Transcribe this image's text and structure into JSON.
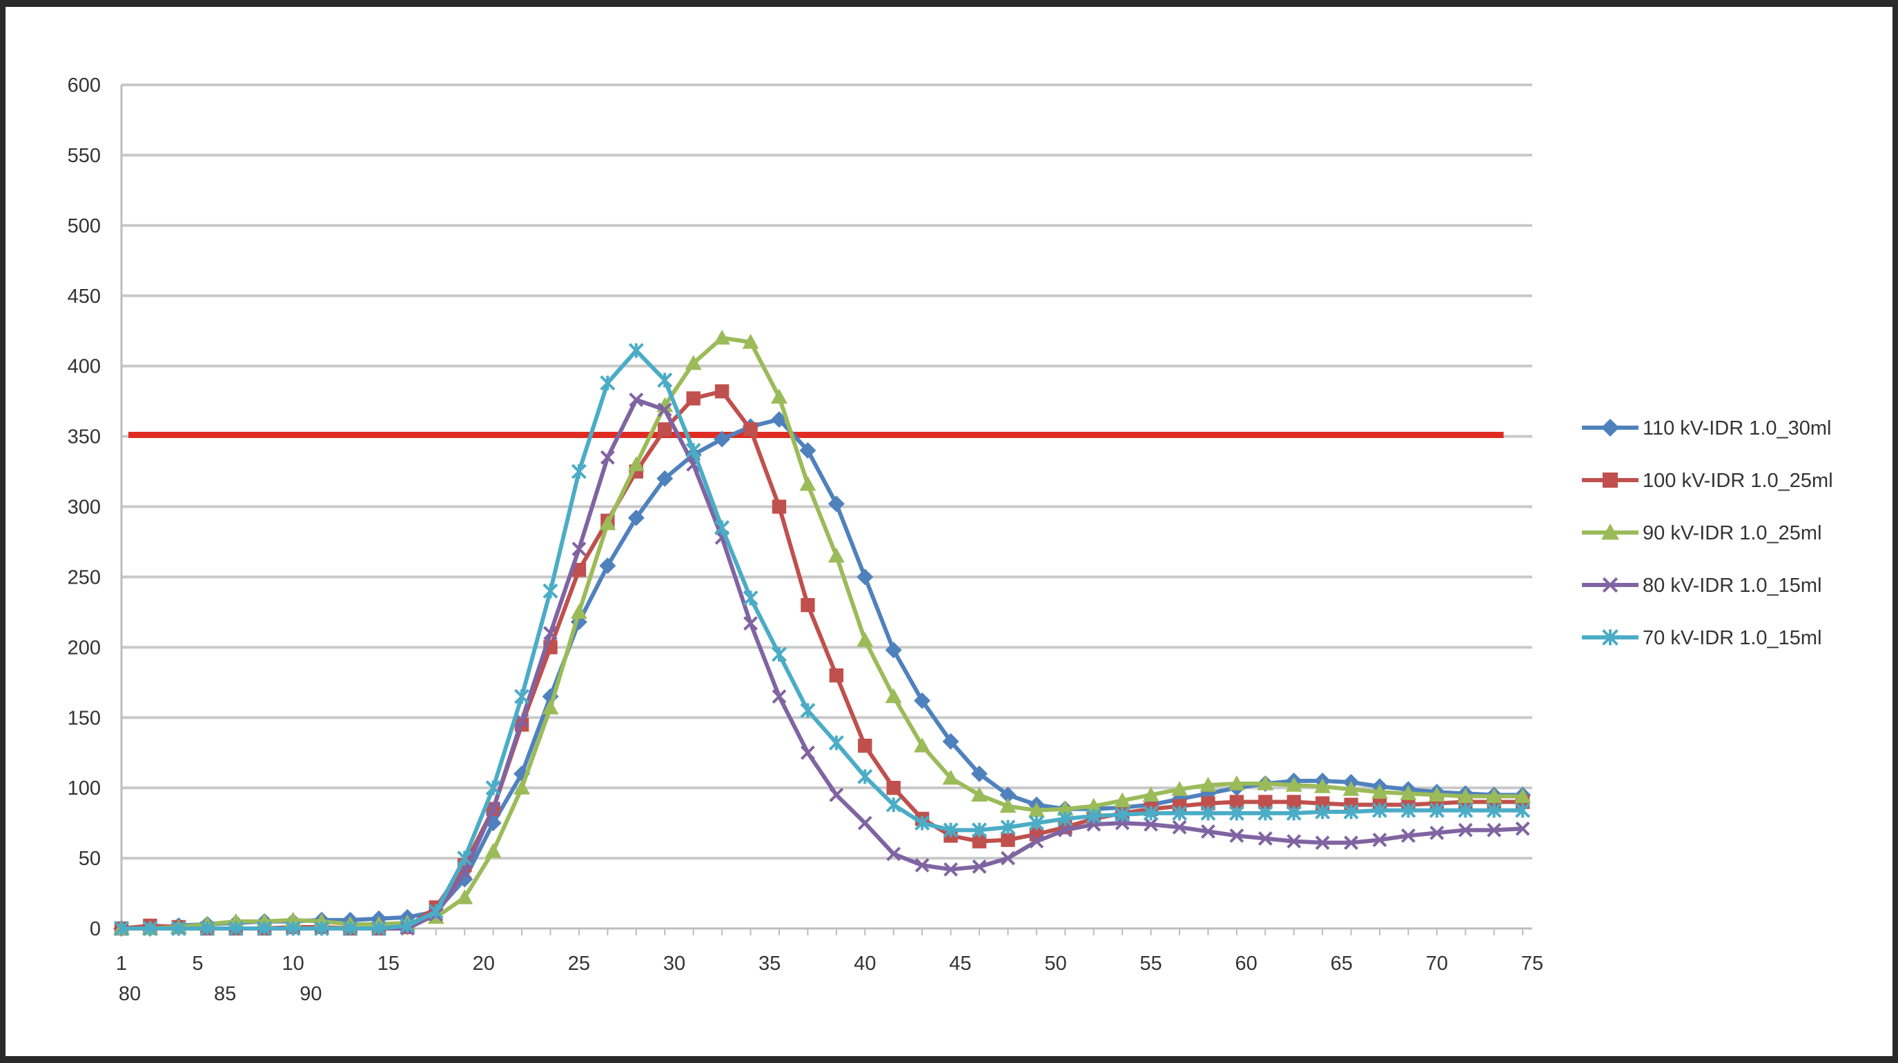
{
  "chart_data": {
    "type": "line",
    "title": "",
    "xlabel": "",
    "ylabel": "",
    "ylim": [
      0,
      600
    ],
    "y_ticks": [
      "0",
      "50",
      "100",
      "150",
      "200",
      "250",
      "300",
      "350",
      "400",
      "450",
      "500",
      "550",
      "600"
    ],
    "x_tick_labels": [
      "1",
      "5",
      "10",
      "15",
      "20",
      "25",
      "30",
      "35",
      "40",
      "45",
      "50",
      "55",
      "60",
      "65",
      "70",
      "75"
    ],
    "x_tick_values": [
      1,
      5,
      10,
      15,
      20,
      25,
      30,
      35,
      40,
      45,
      50,
      55,
      60,
      65,
      70,
      75
    ],
    "x_extra_labels": [
      {
        "text": "80",
        "x": 1
      },
      {
        "text": "85",
        "x": 6
      },
      {
        "text": "90",
        "x": 10.5
      }
    ],
    "xlim": [
      1,
      75
    ],
    "grid": true,
    "legend_position": "right",
    "threshold": {
      "value": 351,
      "color": "#e02b22"
    },
    "x": [
      1,
      2.5,
      4,
      5.5,
      7,
      8.5,
      10,
      11.5,
      13,
      14.5,
      16,
      17.5,
      19,
      20.5,
      22,
      23.5,
      25,
      26.5,
      28,
      29.5,
      31,
      32.5,
      34,
      35.5,
      37,
      38.5,
      40,
      41.5,
      43,
      44.5,
      46,
      47.5,
      49,
      50.5,
      52,
      53.5,
      55,
      56.5,
      58,
      59.5,
      61,
      62.5,
      64,
      65.5,
      67,
      68.5,
      70,
      71.5,
      73,
      74.5
    ],
    "series": [
      {
        "name": "110 kV-IDR 1.0_30ml",
        "color": "#4f81bd",
        "marker": "diamond",
        "values": [
          0,
          0,
          2,
          3,
          4,
          5,
          5,
          6,
          6,
          7,
          8,
          12,
          35,
          75,
          110,
          165,
          218,
          258,
          292,
          320,
          337,
          348,
          357,
          362,
          340,
          302,
          250,
          198,
          162,
          133,
          110,
          95,
          88,
          85,
          85,
          86,
          88,
          92,
          96,
          100,
          103,
          105,
          105,
          104,
          101,
          99,
          97,
          96,
          95,
          95
        ]
      },
      {
        "name": "100 kV-IDR 1.0_25ml",
        "color": "#c0504d",
        "marker": "square",
        "values": [
          0,
          2,
          1,
          0,
          0,
          0,
          1,
          1,
          0,
          0,
          1,
          15,
          45,
          85,
          145,
          200,
          255,
          290,
          325,
          355,
          377,
          382,
          355,
          300,
          230,
          180,
          130,
          100,
          78,
          66,
          62,
          63,
          67,
          72,
          78,
          82,
          85,
          87,
          89,
          90,
          90,
          90,
          89,
          88,
          88,
          88,
          89,
          90,
          90,
          90
        ]
      },
      {
        "name": "90 kV-IDR 1.0_25ml",
        "color": "#9bbb59",
        "marker": "triangle",
        "values": [
          0,
          0,
          1,
          3,
          5,
          5,
          6,
          5,
          3,
          3,
          4,
          8,
          22,
          55,
          100,
          157,
          225,
          288,
          330,
          372,
          402,
          420,
          417,
          378,
          316,
          265,
          205,
          165,
          130,
          107,
          95,
          87,
          84,
          85,
          87,
          91,
          95,
          99,
          102,
          103,
          103,
          102,
          101,
          99,
          97,
          96,
          95,
          94,
          94,
          94
        ]
      },
      {
        "name": "80 kV-IDR 1.0_15ml",
        "color": "#8064a2",
        "marker": "x",
        "values": [
          0,
          0,
          0,
          0,
          0,
          0,
          0,
          0,
          0,
          0,
          0,
          10,
          40,
          85,
          148,
          210,
          270,
          335,
          376,
          369,
          330,
          278,
          217,
          165,
          125,
          95,
          75,
          53,
          45,
          42,
          44,
          50,
          62,
          70,
          74,
          75,
          74,
          72,
          69,
          66,
          64,
          62,
          61,
          61,
          63,
          66,
          68,
          70,
          70,
          71
        ]
      },
      {
        "name": "70 kV-IDR 1.0_15ml",
        "color": "#4bacc6",
        "marker": "star",
        "values": [
          0,
          0,
          0,
          0,
          0,
          0,
          0,
          0,
          0,
          0,
          2,
          12,
          50,
          100,
          165,
          240,
          325,
          388,
          411,
          390,
          340,
          285,
          235,
          195,
          155,
          132,
          108,
          88,
          75,
          70,
          70,
          72,
          75,
          78,
          80,
          81,
          82,
          82,
          82,
          82,
          82,
          82,
          83,
          83,
          84,
          84,
          84,
          84,
          84,
          84
        ]
      }
    ]
  }
}
